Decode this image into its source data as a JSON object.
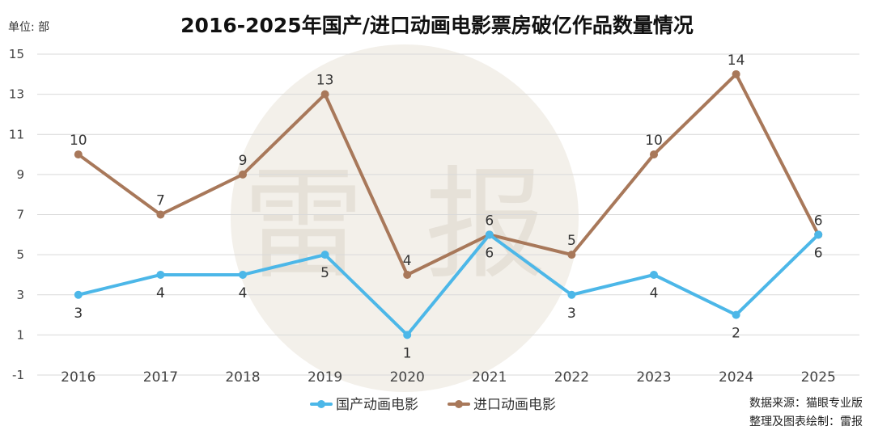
{
  "chart_data": {
    "type": "line",
    "title": "2016-2025年国产/进口动画电影票房破亿作品数量情况",
    "unit_label": "单位: 部",
    "categories": [
      "2016",
      "2017",
      "2018",
      "2019",
      "2020",
      "2021",
      "2022",
      "2023",
      "2024",
      "2025"
    ],
    "ylim": [
      -1,
      15
    ],
    "yticks": [
      -1,
      1,
      3,
      5,
      7,
      9,
      11,
      13,
      15
    ],
    "grid": true,
    "legend_position": "bottom",
    "series": [
      {
        "name": "国产动画电影",
        "color": "#4cb7e8",
        "values": [
          3,
          4,
          4,
          5,
          1,
          6,
          3,
          4,
          2,
          6
        ]
      },
      {
        "name": "进口动画电影",
        "color": "#a8785a",
        "values": [
          10,
          7,
          9,
          13,
          4,
          6,
          5,
          10,
          14,
          6
        ]
      }
    ]
  },
  "watermark": {
    "chars": [
      "雷",
      "报"
    ],
    "circle_color": "#f3f0ea"
  },
  "source_lines": [
    "数据来源：猫眼专业版",
    "整理及图表绘制：雷报"
  ]
}
